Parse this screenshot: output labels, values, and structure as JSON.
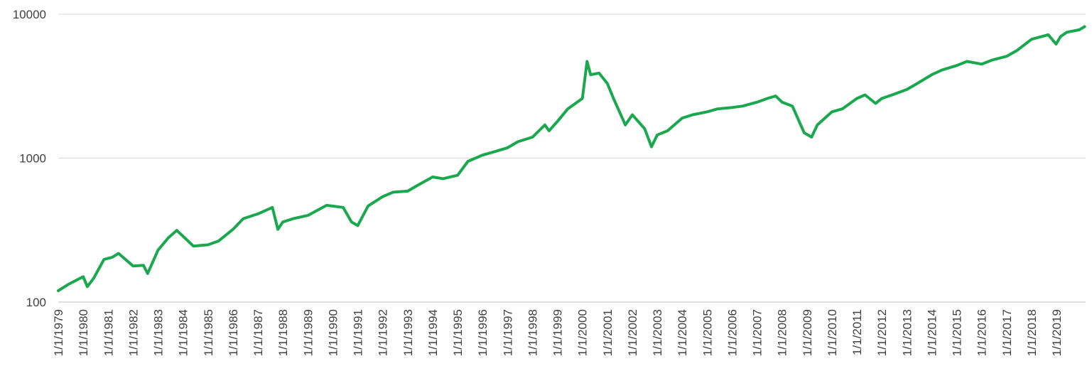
{
  "chart_data": {
    "type": "line",
    "title": "",
    "xlabel": "",
    "ylabel": "",
    "y_scale": "log",
    "ylim": [
      100,
      10000
    ],
    "y_ticks": [
      {
        "value": 100,
        "label": "100"
      },
      {
        "value": 1000,
        "label": "1000"
      },
      {
        "value": 10000,
        "label": "10000"
      }
    ],
    "x_ticks": [
      "1/1/1979",
      "1/1/1980",
      "1/1/1981",
      "1/1/1982",
      "1/1/1983",
      "1/1/1984",
      "1/1/1985",
      "1/1/1986",
      "1/1/1987",
      "1/1/1988",
      "1/1/1989",
      "1/1/1990",
      "1/1/1991",
      "1/1/1992",
      "1/1/1993",
      "1/1/1994",
      "1/1/1995",
      "1/1/1996",
      "1/1/1997",
      "1/1/1998",
      "1/1/1999",
      "1/1/2000",
      "1/1/2001",
      "1/1/2002",
      "1/1/2003",
      "1/1/2004",
      "1/1/2005",
      "1/1/2006",
      "1/1/2007",
      "1/1/2008",
      "1/1/2009",
      "1/1/2010",
      "1/1/2011",
      "1/1/2012",
      "1/1/2013",
      "1/1/2014",
      "1/1/2015",
      "1/1/2016",
      "1/1/2017",
      "1/1/2018",
      "1/1/2019"
    ],
    "xlim": [
      "1979-01-01",
      "2020-03-01"
    ],
    "grid": true,
    "legend": "none",
    "colors": {
      "up": "#1aa84f",
      "down": "#c0504d",
      "grid": "#d9d9d9",
      "text": "#404040"
    },
    "series": [
      {
        "color": "#1aa84f",
        "x": [
          "1979-01-01",
          "1979-06-01",
          "1980-01-01",
          "1980-03-01",
          "1980-06-01",
          "1980-11-01",
          "1981-03-01",
          "1981-06-01",
          "1982-01-01",
          "1982-06-01",
          "1982-08-01",
          "1983-01-01",
          "1983-06-01",
          "1983-10-01",
          "1984-06-01",
          "1985-01-01",
          "1985-06-01",
          "1986-01-01",
          "1986-06-01",
          "1987-01-01",
          "1987-08-01",
          "1987-10-20",
          "1988-01-01",
          "1988-06-01",
          "1989-01-01",
          "1989-10-01",
          "1990-06-01",
          "1990-10-01",
          "1991-01-01",
          "1991-06-01",
          "1992-01-01",
          "1992-06-01",
          "1993-01-01",
          "1993-06-01",
          "1994-01-01",
          "1994-06-01",
          "1995-01-01",
          "1995-06-01",
          "1996-01-01",
          "1996-06-01",
          "1997-01-01",
          "1997-06-01",
          "1998-01-01",
          "1998-07-01",
          "1998-09-01",
          "1999-01-01",
          "1999-06-01",
          "2000-01-01",
          "2000-03-10",
          "2000-05-01",
          "2000-09-01",
          "2001-01-01",
          "2001-04-01",
          "2001-09-21",
          "2002-01-01",
          "2002-07-01",
          "2002-10-09",
          "2003-01-01",
          "2003-06-01",
          "2004-01-01",
          "2004-06-01",
          "2005-01-01",
          "2005-06-01",
          "2006-01-01",
          "2006-06-01",
          "2007-01-01",
          "2007-06-01",
          "2007-10-01",
          "2008-01-01",
          "2008-06-01",
          "2008-11-20",
          "2009-03-09",
          "2009-06-01",
          "2010-01-01",
          "2010-06-01",
          "2011-01-01",
          "2011-05-01",
          "2011-10-01",
          "2012-01-01",
          "2012-06-01",
          "2013-01-01",
          "2013-06-01",
          "2014-01-01",
          "2014-06-01",
          "2015-01-01",
          "2015-06-01",
          "2016-01-01",
          "2016-06-01",
          "2017-01-01",
          "2017-06-01",
          "2018-01-01",
          "2018-09-01",
          "2018-12-24",
          "2019-03-01",
          "2019-06-01",
          "2019-12-01",
          "2020-02-15"
        ],
        "y": [
          120,
          133,
          150,
          128,
          146,
          198,
          205,
          218,
          178,
          180,
          158,
          230,
          280,
          315,
          245,
          250,
          265,
          320,
          380,
          410,
          455,
          320,
          360,
          380,
          400,
          470,
          455,
          360,
          340,
          465,
          540,
          580,
          590,
          650,
          740,
          720,
          760,
          950,
          1050,
          1100,
          1180,
          1300,
          1400,
          1700,
          1550,
          1800,
          2200,
          2600,
          4700,
          3800,
          3900,
          3300,
          2600,
          1700,
          2000,
          1600,
          1200,
          1450,
          1550,
          1900,
          2000,
          2100,
          2200,
          2250,
          2300,
          2450,
          2600,
          2700,
          2450,
          2300,
          1500,
          1400,
          1700,
          2100,
          2200,
          2600,
          2750,
          2400,
          2600,
          2750,
          3000,
          3300,
          3800,
          4100,
          4400,
          4700,
          4500,
          4800,
          5100,
          5600,
          6700,
          7200,
          6200,
          7000,
          7500,
          7800,
          8200
        ]
      }
    ]
  }
}
